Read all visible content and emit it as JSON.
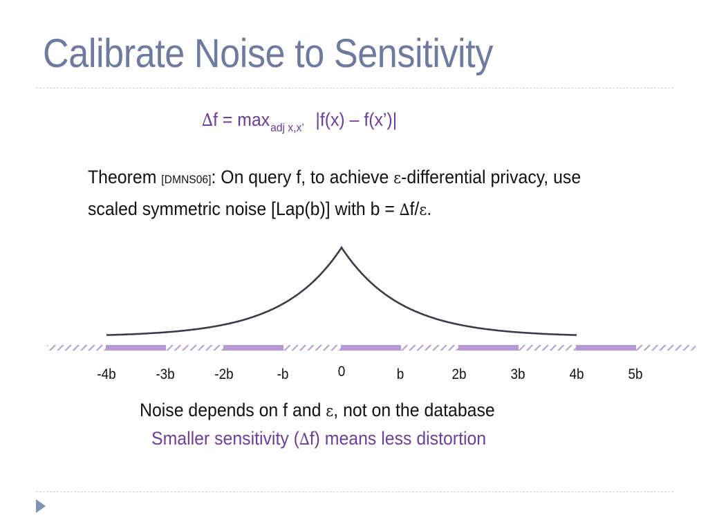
{
  "slide": {
    "title": "Calibrate Noise to Sensitivity"
  },
  "formula": {
    "delta": "∆",
    "lhs": "f = max",
    "subscript": "adj x,x’",
    "rhs": "|f(x) – f(x’)|"
  },
  "theorem": {
    "prefix": "Theorem ",
    "citation": "[DMNS06]",
    "line1_a": ": On query f, to achieve ",
    "epsilon": "ε",
    "line1_b": "-differential privacy, use",
    "line2_a": "scaled symmetric noise [Lap(b)] with b = ",
    "delta": "∆",
    "line2_b": "f/",
    "line2_end": "."
  },
  "axis": {
    "tick_labels": [
      "-4b",
      "-3b",
      "-2b",
      "-b",
      "0",
      "b",
      "2b",
      "3b",
      "4b",
      "5b"
    ],
    "colors": {
      "curve": "#3a3a48",
      "solid_segment": "#b39ad2",
      "hatch": "#b39ad2"
    }
  },
  "notes": {
    "line1_a": "Noise depends on f and ",
    "epsilon": "ε",
    "line1_b": ", not on the database",
    "line2_a": "Smaller sensitivity (",
    "delta": "∆",
    "line2_b": "f) means less distortion"
  }
}
